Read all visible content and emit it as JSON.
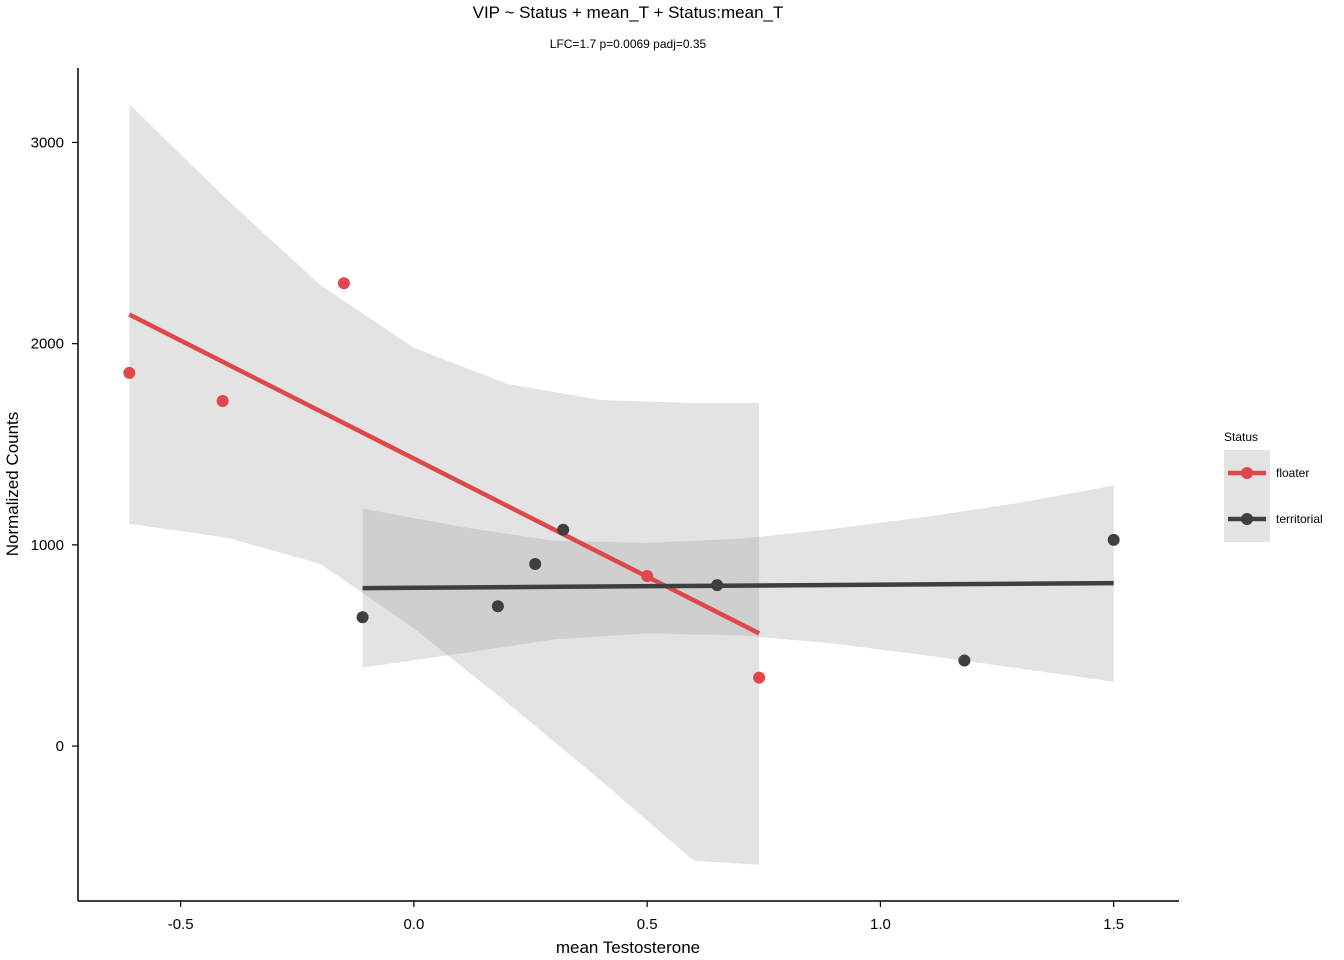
{
  "chart_data": {
    "type": "scatter",
    "title": "VIP ~ Status + mean_T + Status:mean_T",
    "subtitle": "LFC=1.7 p=0.0069 padj=0.35",
    "xlabel": "mean Testosterone",
    "ylabel": "Normalized Counts",
    "xlim": [
      -0.72,
      1.64
    ],
    "ylim": [
      -770,
      3370
    ],
    "x_ticks": [
      -0.5,
      0.0,
      0.5,
      1.0,
      1.5
    ],
    "x_tick_labels": [
      "-0.5",
      "0.0",
      "0.5",
      "1.0",
      "1.5"
    ],
    "y_ticks": [
      0,
      1000,
      2000,
      3000
    ],
    "y_tick_labels": [
      "0",
      "1000",
      "2000",
      "3000"
    ],
    "grid": false,
    "legend": {
      "title": "Status",
      "position": "right",
      "entries": [
        "floater",
        "territorial"
      ]
    },
    "series": [
      {
        "name": "floater",
        "color": "#e0474c",
        "points": [
          {
            "x": -0.61,
            "y": 1855
          },
          {
            "x": -0.41,
            "y": 1715
          },
          {
            "x": -0.15,
            "y": 2300
          },
          {
            "x": 0.5,
            "y": 845
          },
          {
            "x": 0.74,
            "y": 340
          }
        ],
        "fit": {
          "x": [
            -0.61,
            0.74
          ],
          "y": [
            2145,
            560
          ]
        },
        "ci_band": {
          "x": [
            -0.61,
            -0.4,
            -0.2,
            0.0,
            0.2,
            0.4,
            0.6,
            0.74
          ],
          "upper": [
            3190,
            2715,
            2290,
            1980,
            1800,
            1720,
            1705,
            1705
          ],
          "lower": [
            1105,
            1035,
            905,
            585,
            215,
            -170,
            -570,
            -590
          ]
        }
      },
      {
        "name": "territorial",
        "color": "#3f3f3f",
        "points": [
          {
            "x": -0.11,
            "y": 640
          },
          {
            "x": 0.18,
            "y": 695
          },
          {
            "x": 0.26,
            "y": 905
          },
          {
            "x": 0.32,
            "y": 1075
          },
          {
            "x": 0.65,
            "y": 800
          },
          {
            "x": 1.18,
            "y": 425
          },
          {
            "x": 1.5,
            "y": 1025
          }
        ],
        "fit": {
          "x": [
            -0.11,
            1.5
          ],
          "y": [
            785,
            810
          ]
        },
        "ci_band": {
          "x": [
            -0.11,
            0.1,
            0.3,
            0.5,
            0.7,
            0.9,
            1.1,
            1.3,
            1.5
          ],
          "upper": [
            1180,
            1090,
            1020,
            1010,
            1030,
            1080,
            1140,
            1210,
            1295
          ],
          "lower": [
            390,
            460,
            530,
            560,
            550,
            510,
            450,
            385,
            320
          ]
        }
      }
    ]
  }
}
